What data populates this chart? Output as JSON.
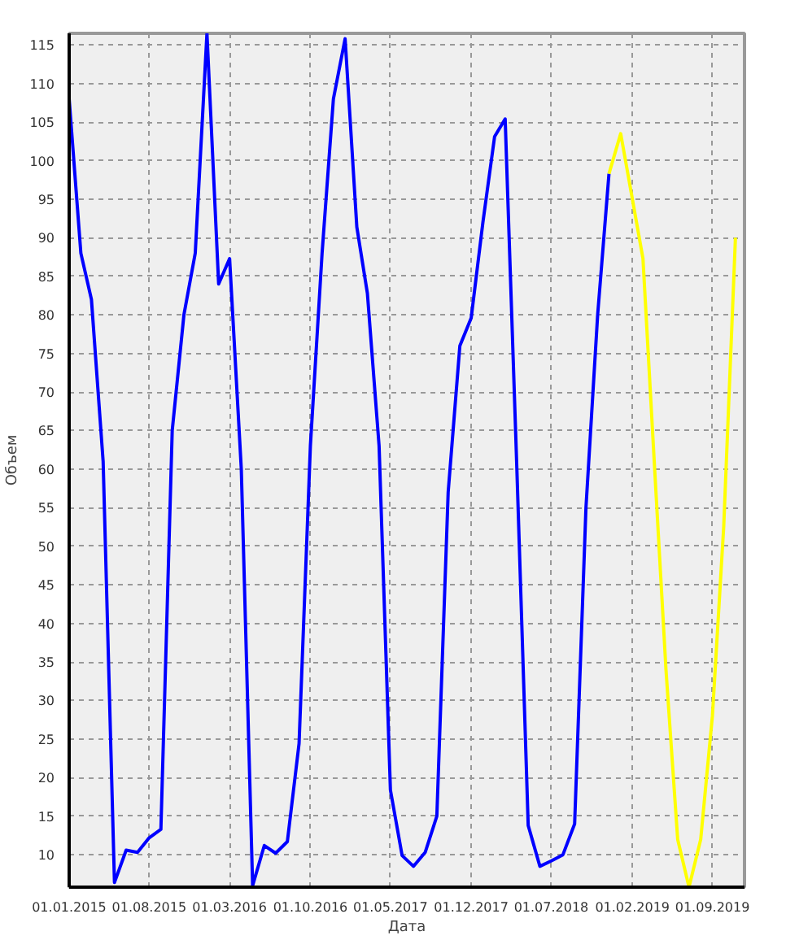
{
  "chart_data": {
    "type": "line",
    "xlabel": "Дата",
    "ylabel": "Объем",
    "xlim": [
      "2015-01-01",
      "2019-11-25"
    ],
    "ylim": [
      5.8,
      116.5
    ],
    "yticks": [
      10,
      15,
      20,
      25,
      30,
      35,
      40,
      45,
      50,
      55,
      60,
      65,
      70,
      75,
      80,
      85,
      90,
      95,
      100,
      105,
      110,
      115
    ],
    "xticks": [
      {
        "value": "2015-01-01",
        "label": "01.01.2015"
      },
      {
        "value": "2015-08-01",
        "label": "01.08.2015"
      },
      {
        "value": "2016-03-01",
        "label": "01.03.2016"
      },
      {
        "value": "2016-10-01",
        "label": "01.10.2016"
      },
      {
        "value": "2017-05-01",
        "label": "01.05.2017"
      },
      {
        "value": "2017-12-01",
        "label": "01.12.2017"
      },
      {
        "value": "2018-07-01",
        "label": "01.07.2018"
      },
      {
        "value": "2019-02-01",
        "label": "01.02.2019"
      },
      {
        "value": "2019-09-01",
        "label": "01.09.2019"
      }
    ],
    "grid": true,
    "line_style": "solid",
    "marker": "none",
    "series": [
      {
        "color": "#0000ff",
        "x": [
          "2015-01",
          "2015-02",
          "2015-03",
          "2015-04",
          "2015-05",
          "2015-06",
          "2015-07",
          "2015-08",
          "2015-09",
          "2015-10",
          "2015-11",
          "2015-12",
          "2016-01",
          "2016-02",
          "2016-03",
          "2016-04",
          "2016-05",
          "2016-06",
          "2016-07",
          "2016-08",
          "2016-09",
          "2016-10",
          "2016-11",
          "2016-12",
          "2017-01",
          "2017-02",
          "2017-03",
          "2017-04",
          "2017-05",
          "2017-06",
          "2017-07",
          "2017-08",
          "2017-09",
          "2017-10",
          "2017-11",
          "2017-12",
          "2018-01",
          "2018-02",
          "2018-03",
          "2018-04",
          "2018-05",
          "2018-06",
          "2018-07",
          "2018-08",
          "2018-09",
          "2018-10",
          "2018-11",
          "2018-12"
        ],
        "values": [
          108,
          88,
          82,
          61,
          6.4,
          10.6,
          10.3,
          12.2,
          13.3,
          65,
          80,
          88,
          116.5,
          84,
          87.3,
          60,
          6,
          11.2,
          10.2,
          11.7,
          24.4,
          63,
          88,
          108,
          115.8,
          91.4,
          82.8,
          63,
          18.4,
          9.9,
          8.5,
          10.3,
          15,
          57,
          76,
          79.6,
          92,
          103.1,
          105.4,
          60,
          13.8,
          8.5,
          9.2,
          10,
          14,
          55,
          80,
          98.3
        ]
      },
      {
        "color": "#ffff00",
        "x": [
          "2018-12",
          "2019-01",
          "2019-02",
          "2019-03",
          "2019-04",
          "2019-05",
          "2019-06",
          "2019-07",
          "2019-08",
          "2019-09",
          "2019-10",
          "2019-11"
        ],
        "values": [
          98.3,
          103.5,
          95,
          87.3,
          60,
          34,
          12,
          5.8,
          12,
          28,
          52.6,
          90
        ]
      }
    ]
  }
}
